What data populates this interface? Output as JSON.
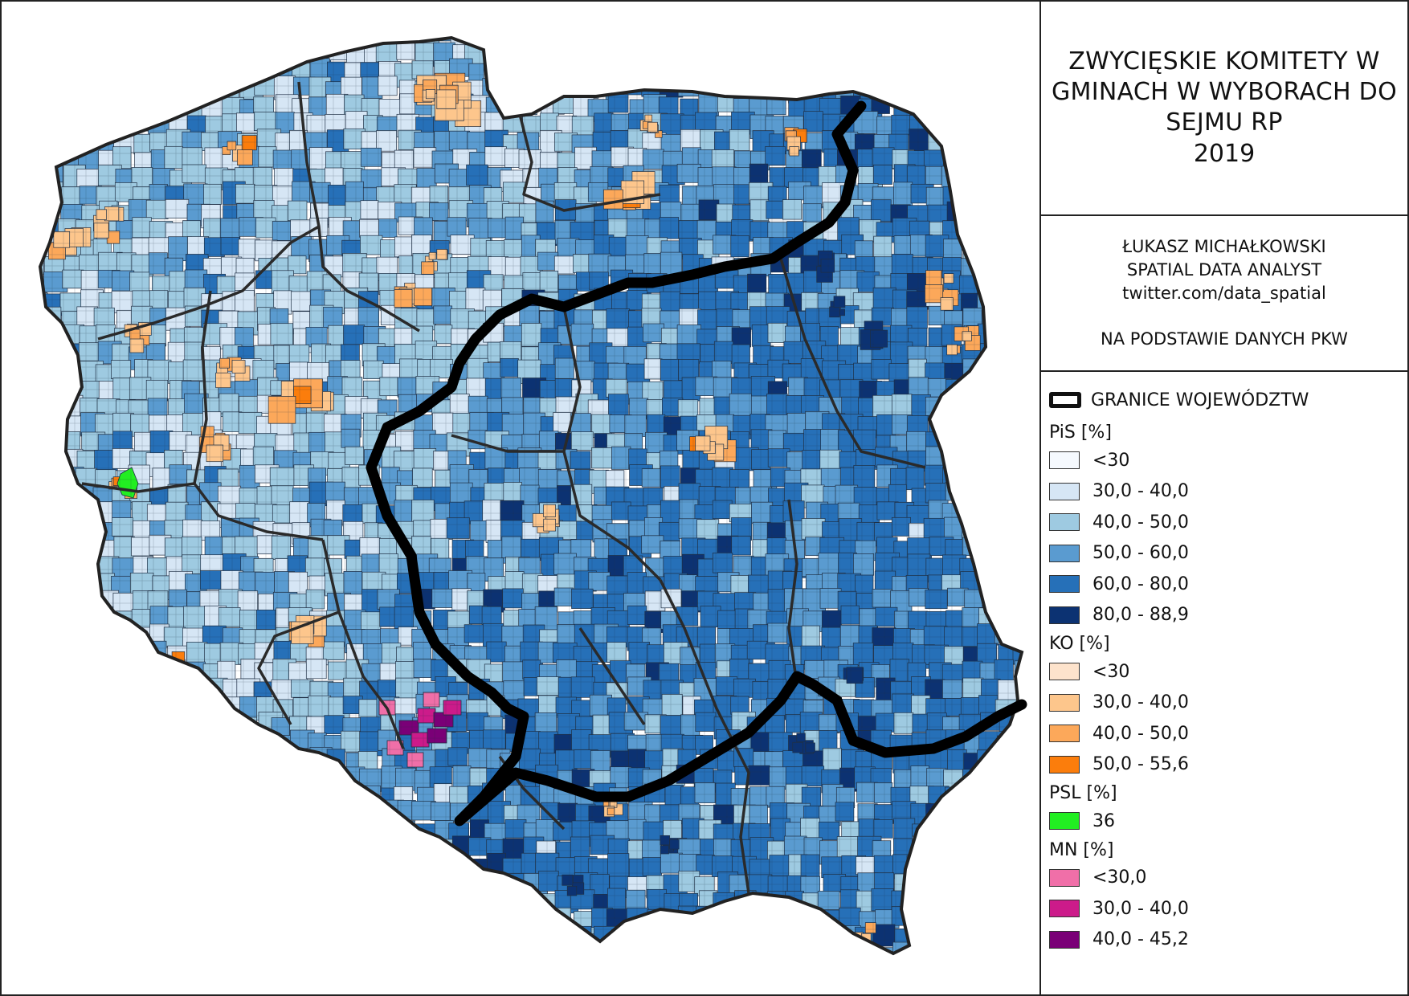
{
  "title": {
    "line1": "ZWYCIĘSKIE KOMITETY W GMINACH W WYBORACH DO SEJMU RP",
    "year": "2019"
  },
  "author": {
    "name": "ŁUKASZ MICHAŁKOWSKI",
    "role": "SPATIAL DATA ANALYST",
    "handle": "twitter.com/data_spatial",
    "source": "NA PODSTAWIE DANYCH PKW"
  },
  "legend": {
    "boundary_label": "GRANICE WOJEWÓDZTW",
    "groups": [
      {
        "title": "PiS [%]",
        "classes": [
          {
            "label": "<30",
            "color": "#f5f9fe"
          },
          {
            "label": "30,0 - 40,0",
            "color": "#d6e6f5"
          },
          {
            "label": "40,0 - 50,0",
            "color": "#9ecae1"
          },
          {
            "label": "50,0 - 60,0",
            "color": "#5a9bd0"
          },
          {
            "label": "60,0 - 80,0",
            "color": "#2670b8"
          },
          {
            "label": "80,0 - 88,9",
            "color": "#0c3272"
          }
        ]
      },
      {
        "title": "KO [%]",
        "classes": [
          {
            "label": "<30",
            "color": "#fde3cc"
          },
          {
            "label": "30,0 - 40,0",
            "color": "#fdc68c"
          },
          {
            "label": "40,0 - 50,0",
            "color": "#fca85a"
          },
          {
            "label": "50,0 - 55,6",
            "color": "#fb7d0c"
          }
        ]
      },
      {
        "title": "PSL [%]",
        "classes": [
          {
            "label": "36",
            "color": "#22ee22"
          }
        ]
      },
      {
        "title": "MN [%]",
        "classes": [
          {
            "label": "<30,0",
            "color": "#f06fa8"
          },
          {
            "label": "30,0 - 40,0",
            "color": "#cc1b8a"
          },
          {
            "label": "40,0 - 45,2",
            "color": "#7a0077"
          }
        ]
      }
    ]
  },
  "map": {
    "pis_colors": [
      "#d6e6f5",
      "#9ecae1",
      "#5a9bd0",
      "#2670b8",
      "#0c3272"
    ],
    "ko_colors": [
      "#fdc68c",
      "#fca85a",
      "#fb7d0c"
    ],
    "psl_color": "#22ee22",
    "mn_colors": [
      "#f06fa8",
      "#cc1b8a",
      "#7a0077"
    ]
  }
}
